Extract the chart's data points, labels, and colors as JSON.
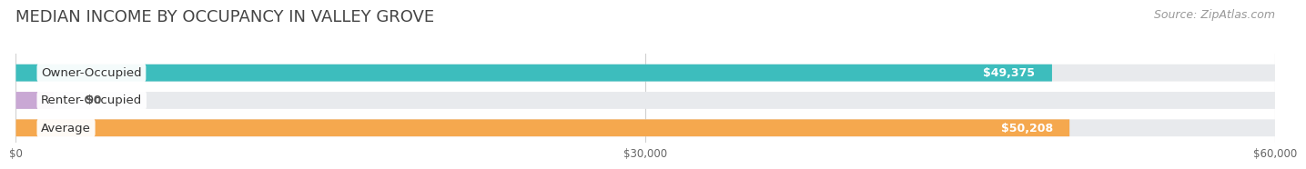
{
  "title": "MEDIAN INCOME BY OCCUPANCY IN VALLEY GROVE",
  "source": "Source: ZipAtlas.com",
  "categories": [
    "Owner-Occupied",
    "Renter-Occupied",
    "Average"
  ],
  "values": [
    49375,
    0,
    50208
  ],
  "bar_colors": [
    "#3dbdbd",
    "#c9a8d4",
    "#f5a84e"
  ],
  "value_labels": [
    "$49,375",
    "$0",
    "$50,208"
  ],
  "xlim": [
    0,
    60000
  ],
  "xticks": [
    0,
    30000,
    60000
  ],
  "xtick_labels": [
    "$0",
    "$30,000",
    "$60,000"
  ],
  "background_color": "#ffffff",
  "bar_bg_color": "#e8eaed",
  "title_fontsize": 13,
  "source_fontsize": 9,
  "label_fontsize": 9.5,
  "value_fontsize": 9
}
